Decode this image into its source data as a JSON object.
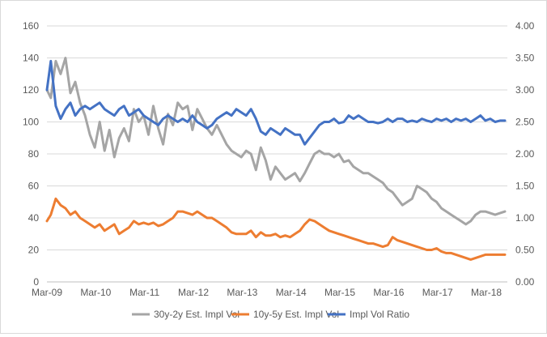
{
  "chart_data": {
    "type": "line",
    "title": "",
    "xlabel": "",
    "ylabel_left": "",
    "ylabel_right": "",
    "y_left_lim": [
      0,
      160
    ],
    "y_left_ticks": [
      "0",
      "20",
      "40",
      "60",
      "80",
      "100",
      "120",
      "140",
      "160"
    ],
    "y_right_lim": [
      0,
      4
    ],
    "y_right_ticks": [
      "0.00",
      "0.50",
      "1.00",
      "1.50",
      "2.00",
      "2.50",
      "3.00",
      "3.50",
      "4.00"
    ],
    "x_lim": [
      2009.17,
      2018.6
    ],
    "x_ticks": [
      "Mar-09",
      "Mar-10",
      "Mar-11",
      "Mar-12",
      "Mar-13",
      "Mar-14",
      "Mar-15",
      "Mar-16",
      "Mar-17",
      "Mar-18"
    ],
    "grid": "horizontal",
    "legend_position": "bottom",
    "series": [
      {
        "name": "30y-2y Est. Impl Vol",
        "axis": "left",
        "color": "#a5a5a5",
        "x": [
          2009.17,
          2009.25,
          2009.35,
          2009.45,
          2009.55,
          2009.65,
          2009.75,
          2009.85,
          2009.95,
          2010.05,
          2010.15,
          2010.25,
          2010.35,
          2010.45,
          2010.55,
          2010.65,
          2010.75,
          2010.85,
          2010.95,
          2011.05,
          2011.15,
          2011.25,
          2011.35,
          2011.45,
          2011.55,
          2011.65,
          2011.75,
          2011.85,
          2011.95,
          2012.05,
          2012.15,
          2012.25,
          2012.35,
          2012.45,
          2012.55,
          2012.65,
          2012.75,
          2012.85,
          2012.95,
          2013.05,
          2013.15,
          2013.25,
          2013.35,
          2013.45,
          2013.55,
          2013.65,
          2013.75,
          2013.85,
          2013.95,
          2014.05,
          2014.15,
          2014.25,
          2014.35,
          2014.45,
          2014.55,
          2014.65,
          2014.75,
          2014.85,
          2014.95,
          2015.05,
          2015.15,
          2015.25,
          2015.35,
          2015.45,
          2015.55,
          2015.65,
          2015.75,
          2015.85,
          2015.95,
          2016.05,
          2016.15,
          2016.25,
          2016.35,
          2016.45,
          2016.55,
          2016.65,
          2016.75,
          2016.85,
          2016.95,
          2017.05,
          2017.15,
          2017.25,
          2017.35,
          2017.45,
          2017.55,
          2017.65,
          2017.75,
          2017.85,
          2017.95,
          2018.05,
          2018.15,
          2018.25,
          2018.35,
          2018.45,
          2018.55
        ],
        "values": [
          120,
          115,
          138,
          130,
          140,
          118,
          125,
          112,
          104,
          92,
          84,
          100,
          82,
          95,
          78,
          90,
          96,
          88,
          108,
          100,
          104,
          92,
          110,
          96,
          86,
          105,
          98,
          112,
          108,
          110,
          95,
          108,
          102,
          96,
          92,
          98,
          92,
          86,
          82,
          80,
          78,
          82,
          80,
          70,
          84,
          76,
          64,
          72,
          68,
          64,
          66,
          68,
          63,
          68,
          74,
          80,
          82,
          80,
          80,
          78,
          80,
          75,
          76,
          72,
          70,
          68,
          68,
          66,
          64,
          62,
          58,
          56,
          52,
          48,
          50,
          52,
          60,
          58,
          56,
          52,
          50,
          46,
          44,
          42,
          40,
          38,
          36,
          38,
          42,
          44,
          44,
          43,
          42,
          43,
          44
        ]
      },
      {
        "name": "10y-5y Est. Impl Vol",
        "axis": "left",
        "color": "#ed7d31",
        "x": [
          2009.17,
          2009.25,
          2009.35,
          2009.45,
          2009.55,
          2009.65,
          2009.75,
          2009.85,
          2009.95,
          2010.05,
          2010.15,
          2010.25,
          2010.35,
          2010.45,
          2010.55,
          2010.65,
          2010.75,
          2010.85,
          2010.95,
          2011.05,
          2011.15,
          2011.25,
          2011.35,
          2011.45,
          2011.55,
          2011.65,
          2011.75,
          2011.85,
          2011.95,
          2012.05,
          2012.15,
          2012.25,
          2012.35,
          2012.45,
          2012.55,
          2012.65,
          2012.75,
          2012.85,
          2012.95,
          2013.05,
          2013.15,
          2013.25,
          2013.35,
          2013.45,
          2013.55,
          2013.65,
          2013.75,
          2013.85,
          2013.95,
          2014.05,
          2014.15,
          2014.25,
          2014.35,
          2014.45,
          2014.55,
          2014.65,
          2014.75,
          2014.85,
          2014.95,
          2015.05,
          2015.15,
          2015.25,
          2015.35,
          2015.45,
          2015.55,
          2015.65,
          2015.75,
          2015.85,
          2015.95,
          2016.05,
          2016.15,
          2016.25,
          2016.35,
          2016.45,
          2016.55,
          2016.65,
          2016.75,
          2016.85,
          2016.95,
          2017.05,
          2017.15,
          2017.25,
          2017.35,
          2017.45,
          2017.55,
          2017.65,
          2017.75,
          2017.85,
          2017.95,
          2018.05,
          2018.15,
          2018.25,
          2018.35,
          2018.45,
          2018.55
        ],
        "values": [
          38,
          42,
          52,
          48,
          46,
          42,
          44,
          40,
          38,
          36,
          34,
          36,
          32,
          34,
          36,
          30,
          32,
          34,
          38,
          36,
          37,
          36,
          37,
          35,
          36,
          38,
          40,
          44,
          44,
          43,
          42,
          44,
          42,
          40,
          40,
          38,
          36,
          34,
          31,
          30,
          30,
          30,
          32,
          28,
          31,
          29,
          29,
          30,
          28,
          29,
          28,
          30,
          32,
          36,
          39,
          38,
          36,
          34,
          32,
          31,
          30,
          29,
          28,
          27,
          26,
          25,
          24,
          24,
          23,
          22,
          23,
          28,
          26,
          25,
          24,
          23,
          22,
          21,
          20,
          20,
          21,
          19,
          18,
          18,
          17,
          16,
          15,
          14,
          15,
          16,
          17,
          17,
          17,
          17,
          17
        ]
      },
      {
        "name": "Impl Vol Ratio",
        "axis": "right",
        "color": "#4472c4",
        "x": [
          2009.17,
          2009.25,
          2009.35,
          2009.45,
          2009.55,
          2009.65,
          2009.75,
          2009.85,
          2009.95,
          2010.05,
          2010.15,
          2010.25,
          2010.35,
          2010.45,
          2010.55,
          2010.65,
          2010.75,
          2010.85,
          2010.95,
          2011.05,
          2011.15,
          2011.25,
          2011.35,
          2011.45,
          2011.55,
          2011.65,
          2011.75,
          2011.85,
          2011.95,
          2012.05,
          2012.15,
          2012.25,
          2012.35,
          2012.45,
          2012.55,
          2012.65,
          2012.75,
          2012.85,
          2012.95,
          2013.05,
          2013.15,
          2013.25,
          2013.35,
          2013.45,
          2013.55,
          2013.65,
          2013.75,
          2013.85,
          2013.95,
          2014.05,
          2014.15,
          2014.25,
          2014.35,
          2014.45,
          2014.55,
          2014.65,
          2014.75,
          2014.85,
          2014.95,
          2015.05,
          2015.15,
          2015.25,
          2015.35,
          2015.45,
          2015.55,
          2015.65,
          2015.75,
          2015.85,
          2015.95,
          2016.05,
          2016.15,
          2016.25,
          2016.35,
          2016.45,
          2016.55,
          2016.65,
          2016.75,
          2016.85,
          2016.95,
          2017.05,
          2017.15,
          2017.25,
          2017.35,
          2017.45,
          2017.55,
          2017.65,
          2017.75,
          2017.85,
          2017.95,
          2018.05,
          2018.15,
          2018.25,
          2018.35,
          2018.45,
          2018.55
        ],
        "values": [
          3.0,
          3.45,
          2.75,
          2.55,
          2.7,
          2.8,
          2.6,
          2.7,
          2.75,
          2.7,
          2.75,
          2.8,
          2.7,
          2.65,
          2.6,
          2.7,
          2.75,
          2.6,
          2.65,
          2.7,
          2.6,
          2.55,
          2.5,
          2.45,
          2.55,
          2.6,
          2.55,
          2.5,
          2.55,
          2.5,
          2.6,
          2.5,
          2.45,
          2.4,
          2.45,
          2.55,
          2.6,
          2.65,
          2.6,
          2.7,
          2.65,
          2.6,
          2.7,
          2.55,
          2.35,
          2.3,
          2.4,
          2.35,
          2.3,
          2.4,
          2.35,
          2.3,
          2.3,
          2.15,
          2.25,
          2.35,
          2.45,
          2.5,
          2.5,
          2.55,
          2.48,
          2.5,
          2.6,
          2.55,
          2.6,
          2.55,
          2.5,
          2.5,
          2.48,
          2.5,
          2.55,
          2.5,
          2.55,
          2.55,
          2.5,
          2.52,
          2.5,
          2.55,
          2.52,
          2.5,
          2.55,
          2.52,
          2.55,
          2.5,
          2.55,
          2.52,
          2.55,
          2.5,
          2.55,
          2.6,
          2.52,
          2.55,
          2.5,
          2.52,
          2.52
        ]
      }
    ]
  }
}
